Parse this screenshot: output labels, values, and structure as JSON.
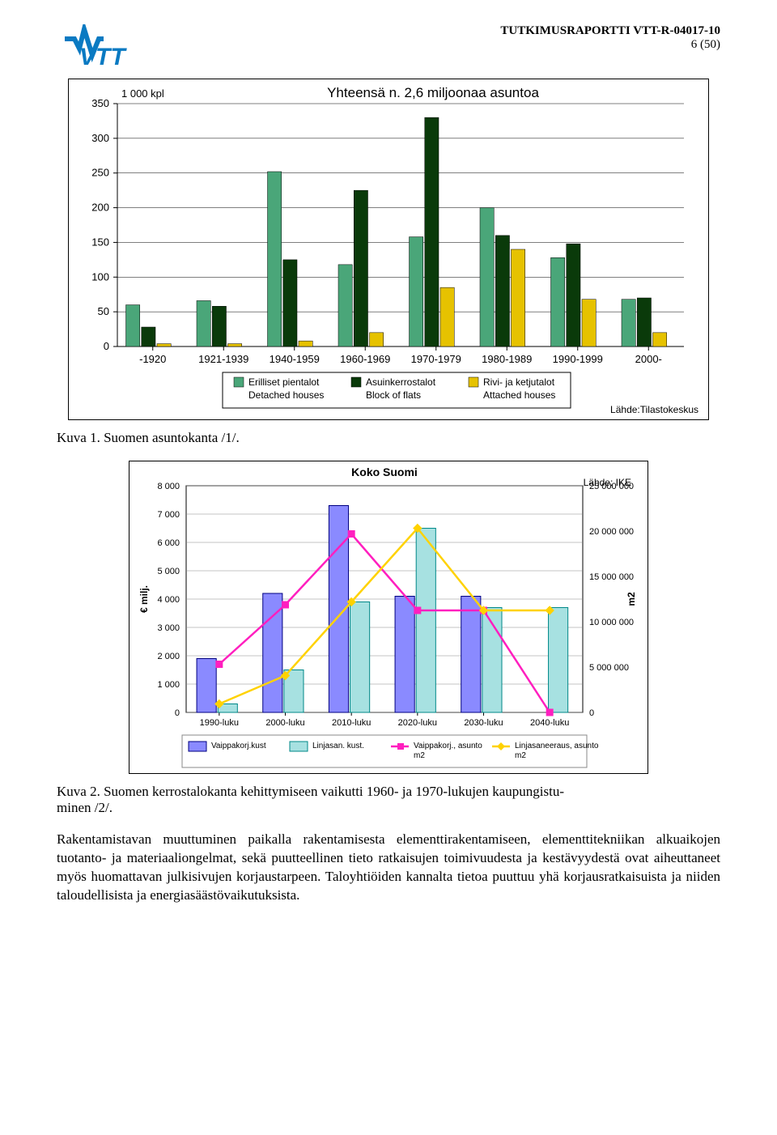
{
  "header": {
    "report_id": "TUTKIMUSRAPORTTI VTT-R-04017-10",
    "page_num": "6 (50)"
  },
  "chart1": {
    "type": "bar",
    "title": "Yhteensä n. 2,6 miljoonaa asuntoa",
    "title_fontsize": 17,
    "y_unit": "1 000 kpl",
    "ylim": [
      0,
      350
    ],
    "ytick_step": 50,
    "categories": [
      "-1920",
      "1921-1939",
      "1940-1959",
      "1960-1969",
      "1970-1979",
      "1980-1989",
      "1990-1999",
      "2000-"
    ],
    "series": [
      {
        "name": "Erilliset pientalot",
        "sub": "Detached houses",
        "color": "#4aa679",
        "values": [
          60,
          66,
          252,
          118,
          158,
          200,
          128,
          68
        ]
      },
      {
        "name": "Asuinkerrostalot",
        "sub": "Block of flats",
        "color": "#0a3a0a",
        "values": [
          28,
          58,
          125,
          225,
          330,
          160,
          148,
          70
        ]
      },
      {
        "name": "Rivi- ja ketjutalot",
        "sub": "Attached houses",
        "color": "#e6c200",
        "values": [
          4,
          4,
          8,
          20,
          85,
          140,
          68,
          20
        ]
      }
    ],
    "bg_color": "#ffffff",
    "grid_color": "#000000",
    "source": "Lähde:Tilastokeskus"
  },
  "fig1_caption": "Kuva 1. Suomen asuntokanta /1/.",
  "chart2": {
    "type": "bar-line-dual-axis",
    "title": "Koko Suomi",
    "title_fontsize": 14,
    "note": "Lähde: IKE",
    "y1_label": "€ milj.",
    "y1_lim": [
      0,
      8000
    ],
    "y1_tick_step": 1000,
    "y2_label": "m2",
    "y2_lim": [
      0,
      25000000
    ],
    "y2_tick_step": 5000000,
    "categories": [
      "1990-luku",
      "2000-luku",
      "2010-luku",
      "2020-luku",
      "2030-luku",
      "2040-luku"
    ],
    "series": [
      {
        "name": "Vaippakorj.kust",
        "kind": "bar",
        "color": "#8a8aff",
        "edge": "#000080",
        "values": [
          1900,
          4200,
          7300,
          4100,
          4100,
          0
        ]
      },
      {
        "name": "Linjasan. kust.",
        "kind": "bar",
        "color": "#a7e1e1",
        "edge": "#008888",
        "values": [
          300,
          1500,
          3900,
          6500,
          3700,
          3700
        ]
      },
      {
        "name": "Vaippakorj., asunto m2",
        "kind": "line",
        "color": "#ff1fbf",
        "marker": "square",
        "values": [
          1700,
          3800,
          6300,
          3600,
          3600,
          0
        ]
      },
      {
        "name": "Linjasaneeraus, asunto m2",
        "kind": "line",
        "color": "#ffd200",
        "marker": "diamond",
        "values": [
          300,
          1300,
          3900,
          6500,
          3600,
          3600
        ]
      }
    ],
    "bg_color": "#ffffff",
    "grid_color": "#888888"
  },
  "fig2_caption_a": "Kuva 2. Suomen kerrostalokanta kehittymiseen vaikutti 1960- ja 1970-lukujen kaupungistu-",
  "fig2_caption_b": "minen /2/.",
  "body_text": "Rakentamistavan muuttuminen paikalla rakentamisesta elementtirakentamiseen, elementtitekniikan alkuaikojen tuotanto- ja materiaaliongelmat, sekä puutteellinen tieto ratkaisujen toimivuudesta ja kestävyydestä ovat aiheuttaneet myös huomattavan julkisivujen korjaustarpeen. Taloyhtiöiden kannalta tietoa puuttuu yhä korjausratkaisuista ja niiden taloudellisista ja energiasäästövaikutuksista."
}
